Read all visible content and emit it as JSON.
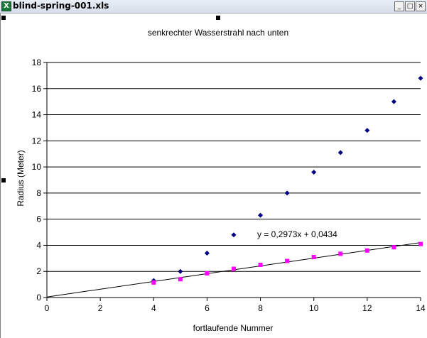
{
  "window": {
    "title": "blind-spring-001.xls",
    "icon": "excel-icon",
    "buttons": [
      "_",
      "□",
      "×"
    ]
  },
  "chart_data": {
    "type": "scatter",
    "title": "senkrechter Wasserstrahl nach unten",
    "xlabel": "fortlaufende Nummer",
    "ylabel": "Radius (Meter)",
    "xlim": [
      0,
      14
    ],
    "ylim": [
      0,
      18
    ],
    "x_ticks": [
      0,
      2,
      4,
      6,
      8,
      10,
      12,
      14
    ],
    "y_ticks": [
      0,
      2,
      4,
      6,
      8,
      10,
      12,
      14,
      16,
      18
    ],
    "grid": "horizontal",
    "series": [
      {
        "marker": "diamond",
        "color": "#000080",
        "x": [
          4,
          5,
          6,
          7,
          8,
          9,
          10,
          11,
          12,
          13,
          14
        ],
        "y": [
          1.3,
          2.0,
          3.4,
          4.8,
          6.3,
          8.0,
          9.6,
          11.1,
          12.8,
          15.0,
          16.8
        ]
      },
      {
        "marker": "square",
        "color": "#ff00ff",
        "x": [
          4,
          5,
          6,
          7,
          8,
          9,
          10,
          11,
          12,
          13,
          14
        ],
        "y": [
          1.15,
          1.4,
          1.85,
          2.2,
          2.5,
          2.8,
          3.1,
          3.35,
          3.6,
          3.85,
          4.1
        ]
      }
    ],
    "trendline": {
      "slope": 0.2973,
      "intercept": 0.0434,
      "color": "#000000",
      "equation": "y = 0,2973x + 0,0434"
    }
  }
}
